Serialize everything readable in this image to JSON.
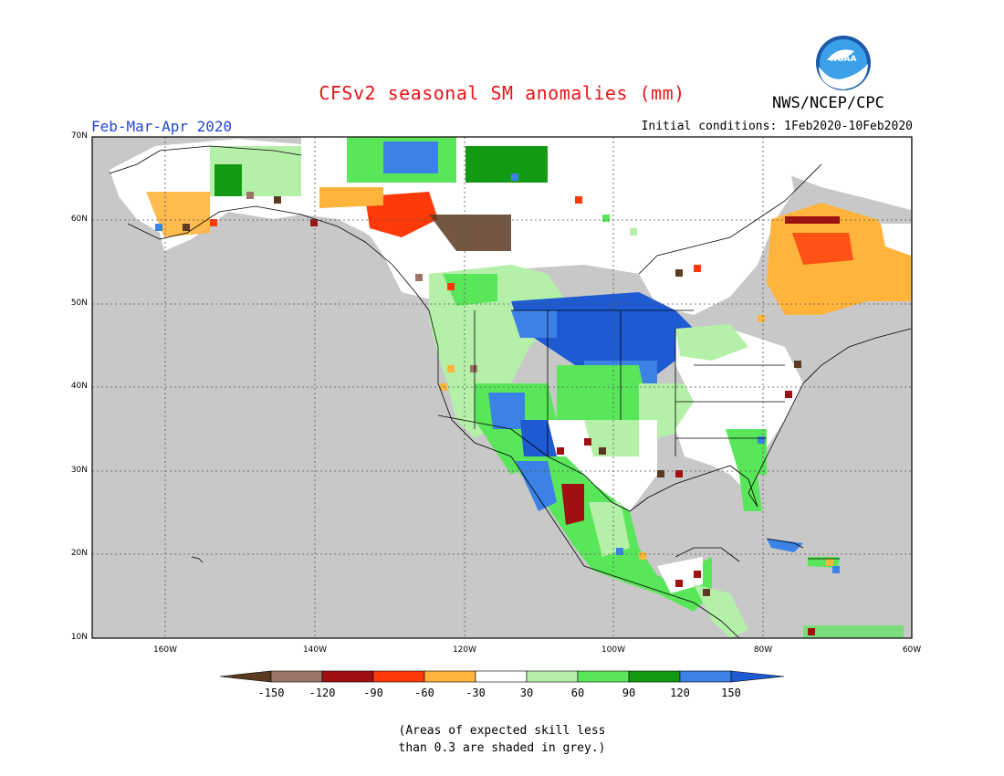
{
  "title": "CFSv2 seasonal SM anomalies (mm)",
  "organization": "NWS/NCEP/CPC",
  "logo_text": "NOAA",
  "season_label": "Feb-Mar-Apr 2020",
  "initial_conditions": "Initial conditions: 1Feb2020-10Feb2020",
  "lat_labels": [
    "70N",
    "60N",
    "50N",
    "40N",
    "30N",
    "20N",
    "10N"
  ],
  "lon_labels": [
    "160W",
    "140W",
    "120W",
    "100W",
    "80W",
    "60W"
  ],
  "colorbar": {
    "labels": [
      "-150",
      "-120",
      "-90",
      "-60",
      "-30",
      "30",
      "60",
      "90",
      "120",
      "150"
    ],
    "colors": [
      "#5c3a22",
      "#9a7568",
      "#a01010",
      "#ff3a0a",
      "#ffb43c",
      "#ffffff",
      "#b4f0a8",
      "#5ae65a",
      "#129a12",
      "#3c82e6",
      "#1e5ad2"
    ]
  },
  "colors": {
    "grey_mask": "#c8c8c8",
    "title_red": "#e8141a",
    "season_blue": "#2346d8"
  },
  "note_line1": "(Areas of expected skill less",
  "note_line2": "than 0.3 are shaded in grey.)"
}
